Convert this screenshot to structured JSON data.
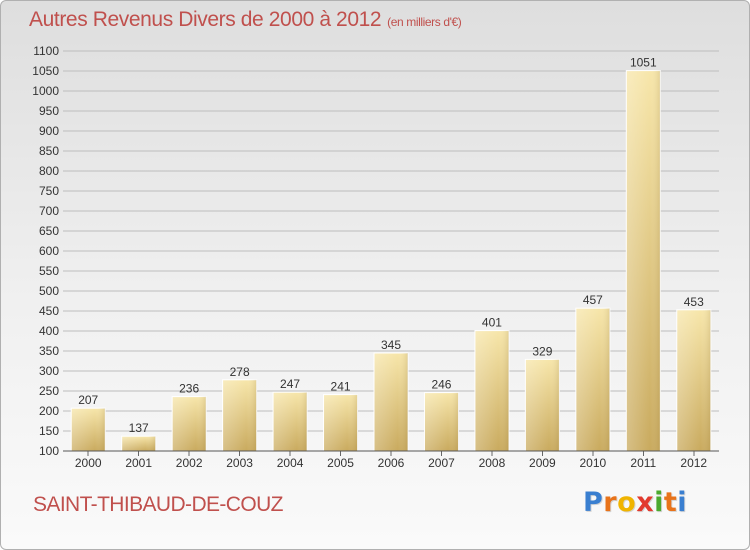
{
  "title": {
    "main": "Autres Revenus Divers de 2000 à 2012",
    "unit": "(en milliers d'€)"
  },
  "commune": "SAINT-THIBAUD-DE-COUZ",
  "brand": {
    "text": "Proxiti",
    "letters": [
      "P",
      "r",
      "o",
      "x",
      "i",
      "t",
      "i"
    ],
    "letter_colors": [
      "#3a7fd0",
      "#e8731a",
      "#f0b400",
      "#e23a2e",
      "#4caa2f",
      "#e8731a",
      "#3a7fd0"
    ]
  },
  "colors": {
    "title": "#c0504d",
    "bar_light": "#f6e3a6",
    "bar_dark": "#c8a95c",
    "grid": "#bdbdbd"
  },
  "chart_data": {
    "type": "bar",
    "title": "Autres Revenus Divers de 2000 à 2012",
    "subtitle": "(en milliers d'€)",
    "xlabel": "",
    "ylabel": "",
    "categories": [
      "2000",
      "2001",
      "2002",
      "2003",
      "2004",
      "2005",
      "2006",
      "2007",
      "2008",
      "2009",
      "2010",
      "2011",
      "2012"
    ],
    "values": [
      207,
      137,
      236,
      278,
      247,
      241,
      345,
      246,
      401,
      329,
      457,
      1051,
      453
    ],
    "ylim": [
      100,
      1100
    ],
    "ytick_step": 50,
    "grid": true,
    "legend": "none"
  }
}
